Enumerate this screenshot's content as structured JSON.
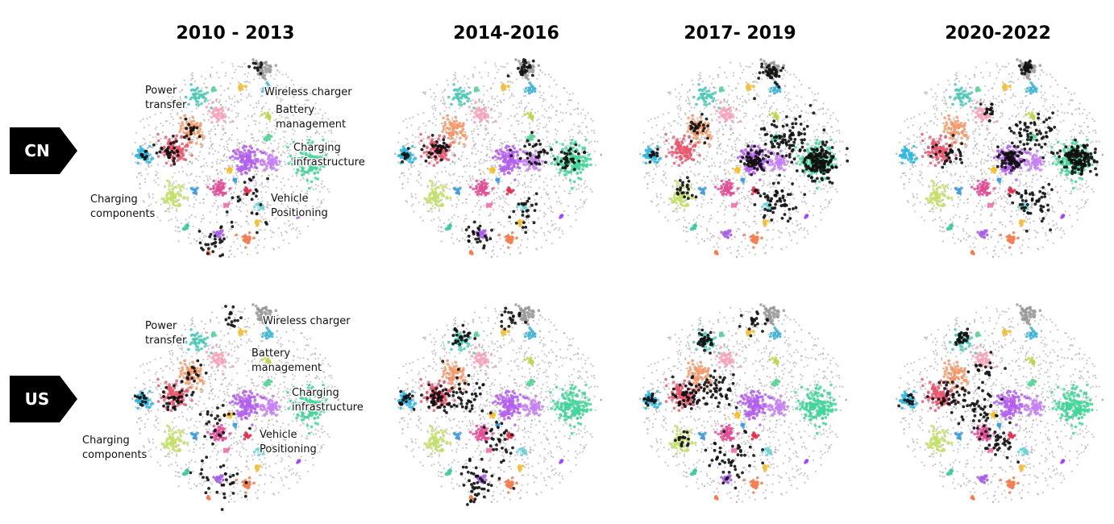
{
  "chart_data": {
    "type": "scatter",
    "columns": [
      "2010 - 2013",
      "2014-2016",
      "2017- 2019",
      "2020-2022"
    ],
    "rows": [
      "CN",
      "US"
    ],
    "cluster_labels": {
      "CN": [
        {
          "text": "Power\ntransfer",
          "id": "power-transfer"
        },
        {
          "text": "Wireless charger",
          "id": "wireless-charger"
        },
        {
          "text": "Battery\nmanagement",
          "id": "battery-management"
        },
        {
          "text": "Charging\ninfrastructure",
          "id": "charging-infrastructure"
        },
        {
          "text": "Charging\ncomponents",
          "id": "charging-components"
        },
        {
          "text": "Vehicle\nPositioning",
          "id": "vehicle-positioning"
        }
      ],
      "US": [
        {
          "text": "Power\ntransfer",
          "id": "power-transfer"
        },
        {
          "text": "Wireless charger",
          "id": "wireless-charger"
        },
        {
          "text": "Battery\nmanagement",
          "id": "battery-management"
        },
        {
          "text": "Charging\ninfrastructure",
          "id": "charging-infrastructure"
        },
        {
          "text": "Charging\ncomponents",
          "id": "charging-components"
        },
        {
          "text": "Vehicle\nPositioning",
          "id": "vehicle-positioning"
        }
      ]
    },
    "clusters": [
      {
        "id": "c-cyan-left",
        "color": "#2fb8e0",
        "x": -0.85,
        "y": 0.05,
        "r": 0.07,
        "n": 45
      },
      {
        "id": "c-lime",
        "color": "#c3e06a",
        "x": -0.58,
        "y": -0.35,
        "r": 0.09,
        "n": 60
      },
      {
        "id": "c-red",
        "color": "#e8596f",
        "x": -0.55,
        "y": 0.1,
        "r": 0.12,
        "n": 110
      },
      {
        "id": "c-orange",
        "color": "#f59a6a",
        "x": -0.4,
        "y": 0.3,
        "r": 0.1,
        "n": 70
      },
      {
        "id": "c-pink-top",
        "color": "#f5a3b8",
        "x": -0.15,
        "y": 0.45,
        "r": 0.08,
        "n": 45
      },
      {
        "id": "c-teal",
        "color": "#4fc9b6",
        "x": -0.35,
        "y": 0.62,
        "r": 0.08,
        "n": 45
      },
      {
        "id": "c-green-small",
        "color": "#5fd39a",
        "x": -0.2,
        "y": 0.68,
        "r": 0.03,
        "n": 10
      },
      {
        "id": "c-yellow",
        "color": "#f5c040",
        "x": 0.05,
        "y": 0.7,
        "r": 0.035,
        "n": 15
      },
      {
        "id": "c-grey",
        "color": "#9a9a9a",
        "x": 0.25,
        "y": 0.88,
        "r": 0.08,
        "n": 55
      },
      {
        "id": "c-cyan-top",
        "color": "#3cb4d8",
        "x": 0.3,
        "y": 0.68,
        "r": 0.04,
        "n": 18
      },
      {
        "id": "c-yellowgreen",
        "color": "#bcd84a",
        "x": 0.3,
        "y": 0.42,
        "r": 0.035,
        "n": 15
      },
      {
        "id": "c-purple",
        "color": "#b35ef0",
        "x": 0.1,
        "y": 0.0,
        "r": 0.12,
        "n": 110
      },
      {
        "id": "c-violet",
        "color": "#c680f5",
        "x": 0.32,
        "y": -0.02,
        "r": 0.08,
        "n": 50
      },
      {
        "id": "c-green",
        "color": "#43d699",
        "x": 0.68,
        "y": -0.02,
        "r": 0.15,
        "n": 170
      },
      {
        "id": "c-green-mid",
        "color": "#5fd39a",
        "x": 0.3,
        "y": 0.22,
        "r": 0.04,
        "n": 18
      },
      {
        "id": "c-magenta",
        "color": "#e04f97",
        "x": -0.15,
        "y": -0.28,
        "r": 0.07,
        "n": 55
      },
      {
        "id": "c-blue-mid",
        "color": "#3f9ee0",
        "x": -0.38,
        "y": -0.3,
        "r": 0.03,
        "n": 12
      },
      {
        "id": "c-red-mid",
        "color": "#e0324f",
        "x": 0.1,
        "y": -0.3,
        "r": 0.03,
        "n": 14
      },
      {
        "id": "c-cyan-low",
        "color": "#6fd3d8",
        "x": 0.23,
        "y": -0.45,
        "r": 0.04,
        "n": 16
      },
      {
        "id": "c-yellow-low",
        "color": "#f5c040",
        "x": 0.2,
        "y": -0.62,
        "r": 0.03,
        "n": 12
      },
      {
        "id": "c-purple-low",
        "color": "#a85ee8",
        "x": -0.15,
        "y": -0.72,
        "r": 0.04,
        "n": 18
      },
      {
        "id": "c-orange-low",
        "color": "#f57b4f",
        "x": 0.1,
        "y": -0.78,
        "r": 0.05,
        "n": 25
      },
      {
        "id": "c-pink-mid",
        "color": "#f07ab0",
        "x": -0.08,
        "y": -0.45,
        "r": 0.03,
        "n": 12
      },
      {
        "id": "c-teal-low",
        "color": "#3fc9a0",
        "x": -0.45,
        "y": -0.65,
        "r": 0.025,
        "n": 10
      },
      {
        "id": "c-purple-dot",
        "color": "#a040ff",
        "x": 0.58,
        "y": -0.55,
        "r": 0.015,
        "n": 5
      },
      {
        "id": "c-yellow-mid",
        "color": "#f5c020",
        "x": -0.05,
        "y": -0.1,
        "r": 0.02,
        "n": 8
      },
      {
        "id": "c-blue-small",
        "color": "#3f9ee0",
        "x": 0.0,
        "y": -0.2,
        "r": 0.02,
        "n": 8
      },
      {
        "id": "c-orange-dot",
        "color": "#f57b4f",
        "x": -0.25,
        "y": -0.9,
        "r": 0.02,
        "n": 8
      }
    ],
    "activity": {
      "CN": [
        [
          {
            "x": -0.6,
            "y": 0.1,
            "r": 0.12,
            "n": 30
          },
          {
            "x": -0.4,
            "y": 0.3,
            "r": 0.1,
            "n": 15
          },
          {
            "x": -0.2,
            "y": -0.8,
            "r": 0.15,
            "n": 25
          },
          {
            "x": 0.2,
            "y": 0.9,
            "r": 0.06,
            "n": 10
          },
          {
            "x": -0.85,
            "y": 0.05,
            "r": 0.06,
            "n": 10
          },
          {
            "x": 0.1,
            "y": -0.4,
            "r": 0.25,
            "n": 25
          }
        ],
        [
          {
            "x": -0.55,
            "y": 0.1,
            "r": 0.12,
            "n": 35
          },
          {
            "x": 0.35,
            "y": 0.05,
            "r": 0.15,
            "n": 35
          },
          {
            "x": 0.65,
            "y": 0.0,
            "r": 0.15,
            "n": 30
          },
          {
            "x": 0.25,
            "y": 0.88,
            "r": 0.08,
            "n": 25
          },
          {
            "x": -0.85,
            "y": 0.05,
            "r": 0.06,
            "n": 12
          },
          {
            "x": -0.2,
            "y": -0.75,
            "r": 0.15,
            "n": 25
          },
          {
            "x": 0.25,
            "y": -0.5,
            "r": 0.15,
            "n": 25
          }
        ],
        [
          {
            "x": 0.1,
            "y": 0.0,
            "r": 0.12,
            "n": 60
          },
          {
            "x": 0.7,
            "y": -0.02,
            "r": 0.15,
            "n": 160
          },
          {
            "x": 0.4,
            "y": 0.2,
            "r": 0.25,
            "n": 90
          },
          {
            "x": 0.25,
            "y": 0.85,
            "r": 0.1,
            "n": 40
          },
          {
            "x": 0.3,
            "y": -0.4,
            "r": 0.2,
            "n": 60
          },
          {
            "x": -0.4,
            "y": 0.3,
            "r": 0.1,
            "n": 25
          },
          {
            "x": -0.55,
            "y": -0.3,
            "r": 0.12,
            "n": 20
          },
          {
            "x": -0.85,
            "y": 0.05,
            "r": 0.06,
            "n": 12
          }
        ],
        [
          {
            "x": 0.1,
            "y": 0.0,
            "r": 0.12,
            "n": 70
          },
          {
            "x": 0.72,
            "y": 0.0,
            "r": 0.15,
            "n": 140
          },
          {
            "x": 0.3,
            "y": 0.25,
            "r": 0.2,
            "n": 60
          },
          {
            "x": 0.25,
            "y": 0.9,
            "r": 0.06,
            "n": 30
          },
          {
            "x": 0.3,
            "y": -0.4,
            "r": 0.2,
            "n": 50
          },
          {
            "x": -0.45,
            "y": 0.05,
            "r": 0.15,
            "n": 30
          },
          {
            "x": -0.1,
            "y": 0.45,
            "r": 0.08,
            "n": 15
          }
        ]
      ],
      "US": [
        [
          {
            "x": -0.55,
            "y": 0.05,
            "r": 0.12,
            "n": 30
          },
          {
            "x": -0.4,
            "y": 0.3,
            "r": 0.1,
            "n": 15
          },
          {
            "x": -0.15,
            "y": -0.75,
            "r": 0.2,
            "n": 30
          },
          {
            "x": -0.85,
            "y": 0.05,
            "r": 0.06,
            "n": 12
          },
          {
            "x": 0.0,
            "y": 0.85,
            "r": 0.12,
            "n": 15
          },
          {
            "x": -0.2,
            "y": -0.2,
            "r": 0.2,
            "n": 25
          }
        ],
        [
          {
            "x": -0.55,
            "y": 0.05,
            "r": 0.15,
            "n": 50
          },
          {
            "x": -0.3,
            "y": 0.1,
            "r": 0.2,
            "n": 40
          },
          {
            "x": -0.2,
            "y": -0.75,
            "r": 0.2,
            "n": 50
          },
          {
            "x": -0.35,
            "y": 0.65,
            "r": 0.12,
            "n": 25
          },
          {
            "x": -0.85,
            "y": 0.05,
            "r": 0.06,
            "n": 15
          },
          {
            "x": 0.1,
            "y": 0.85,
            "r": 0.12,
            "n": 20
          },
          {
            "x": 0.0,
            "y": -0.3,
            "r": 0.2,
            "n": 30
          }
        ],
        [
          {
            "x": -0.5,
            "y": 0.1,
            "r": 0.15,
            "n": 55
          },
          {
            "x": -0.25,
            "y": 0.15,
            "r": 0.2,
            "n": 45
          },
          {
            "x": -0.1,
            "y": -0.5,
            "r": 0.25,
            "n": 50
          },
          {
            "x": -0.35,
            "y": 0.62,
            "r": 0.1,
            "n": 30
          },
          {
            "x": -0.85,
            "y": 0.05,
            "r": 0.06,
            "n": 15
          },
          {
            "x": 0.1,
            "y": 0.8,
            "r": 0.12,
            "n": 20
          },
          {
            "x": -0.55,
            "y": -0.35,
            "r": 0.1,
            "n": 15
          }
        ],
        [
          {
            "x": -0.45,
            "y": 0.1,
            "r": 0.15,
            "n": 40
          },
          {
            "x": -0.2,
            "y": -0.05,
            "r": 0.2,
            "n": 45
          },
          {
            "x": 0.0,
            "y": -0.35,
            "r": 0.15,
            "n": 35
          },
          {
            "x": -0.35,
            "y": 0.65,
            "r": 0.1,
            "n": 30
          },
          {
            "x": -0.85,
            "y": 0.05,
            "r": 0.06,
            "n": 12
          },
          {
            "x": -0.15,
            "y": 0.35,
            "r": 0.15,
            "n": 20
          }
        ]
      ]
    }
  }
}
